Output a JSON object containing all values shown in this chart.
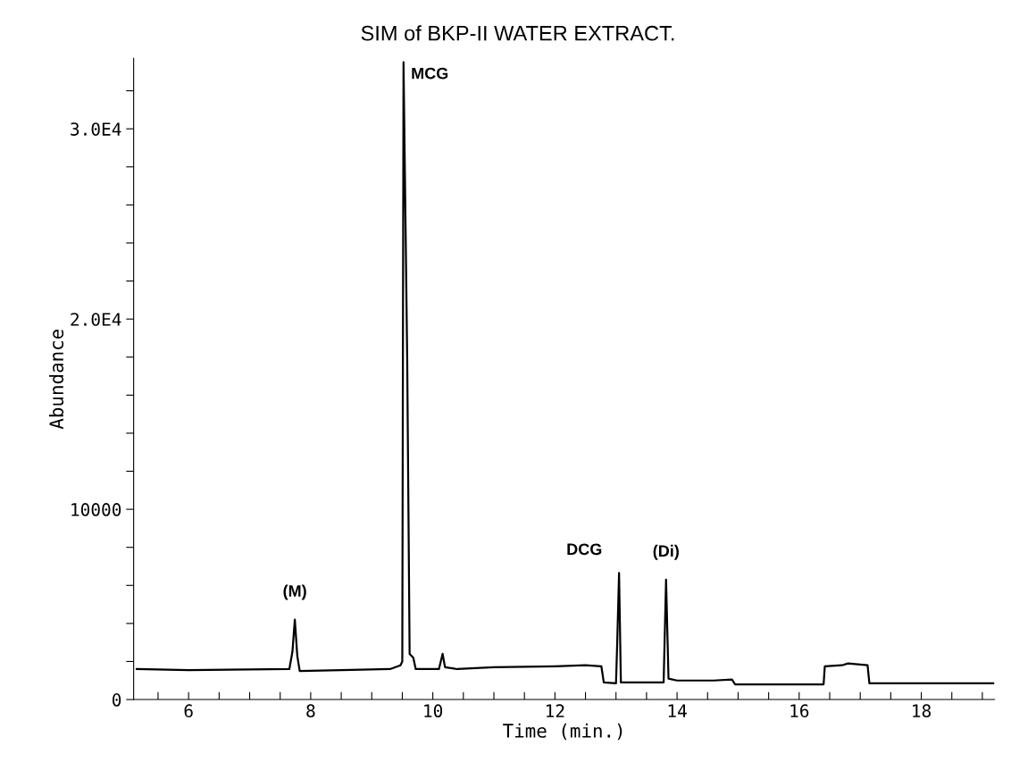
{
  "chart_data": {
    "type": "line",
    "title": "SIM of BKP-II WATER EXTRACT.",
    "xlabel": "Time (min.)",
    "ylabel": "Abundance",
    "x": [
      5.15,
      6.0,
      7.0,
      7.65,
      7.7,
      7.74,
      7.78,
      7.82,
      8.5,
      9.3,
      9.47,
      9.5,
      9.52,
      9.58,
      9.62,
      9.68,
      9.72,
      10.1,
      10.16,
      10.2,
      10.4,
      11.0,
      12.0,
      12.5,
      12.76,
      12.8,
      13.0,
      13.02,
      13.05,
      13.08,
      13.5,
      13.78,
      13.82,
      13.86,
      14.0,
      14.6,
      14.9,
      14.95,
      16.4,
      16.42,
      16.7,
      16.8,
      17.12,
      17.15,
      19.18
    ],
    "values": [
      1600,
      1550,
      1580,
      1600,
      2500,
      4200,
      2300,
      1500,
      1550,
      1600,
      1800,
      2000,
      33500,
      18000,
      2400,
      2200,
      1600,
      1600,
      2400,
      1700,
      1600,
      1700,
      1750,
      1800,
      1750,
      900,
      850,
      3000,
      6650,
      900,
      900,
      900,
      6300,
      1100,
      1000,
      1000,
      1050,
      800,
      800,
      1750,
      1800,
      1900,
      1800,
      850,
      850
    ],
    "color": "#000000",
    "xlim": [
      5.1,
      19.2
    ],
    "xticks": [
      {
        "value": 5.5,
        "label": null
      },
      6,
      {
        "value": 6.5,
        "label": null
      },
      {
        "value": 7,
        "label": null
      },
      {
        "value": 7.5,
        "label": null
      },
      8,
      {
        "value": 8.5,
        "label": null
      },
      {
        "value": 9,
        "label": null
      },
      {
        "value": 9.5,
        "label": null
      },
      10,
      {
        "value": 10.5,
        "label": null
      },
      {
        "value": 11,
        "label": null
      },
      {
        "value": 11.5,
        "label": null
      },
      12,
      {
        "value": 12.5,
        "label": null
      },
      {
        "value": 13,
        "label": null
      },
      {
        "value": 13.5,
        "label": null
      },
      14,
      {
        "value": 14.5,
        "label": null
      },
      {
        "value": 15,
        "label": null
      },
      {
        "value": 15.5,
        "label": null
      },
      16,
      {
        "value": 16.5,
        "label": null
      },
      {
        "value": 17,
        "label": null
      },
      {
        "value": 17.5,
        "label": null
      },
      18,
      {
        "value": 18.5,
        "label": null
      },
      {
        "value": 19,
        "label": null
      }
    ],
    "ylim": [
      0,
      33700
    ],
    "yticks": [
      0,
      {
        "value": 2000,
        "label": null
      },
      {
        "value": 4000,
        "label": null
      },
      {
        "value": 6000,
        "label": null
      },
      {
        "value": 8000,
        "label": null
      },
      10000,
      {
        "value": 12000,
        "label": null
      },
      {
        "value": 14000,
        "label": null
      },
      {
        "value": 16000,
        "label": null
      },
      {
        "value": 18000,
        "label": null
      },
      {
        "value": 20000,
        "label": "2.0E4"
      },
      {
        "value": 22000,
        "label": null
      },
      {
        "value": 24000,
        "label": null
      },
      {
        "value": 26000,
        "label": null
      },
      {
        "value": 28000,
        "label": null
      },
      {
        "value": 30000,
        "label": "3.0E4"
      },
      {
        "value": 32000,
        "label": null
      }
    ],
    "annotations": [
      {
        "text": "(M)",
        "x": 7.74,
        "y": 4200
      },
      {
        "text": "MCG",
        "x": 9.52,
        "y": 33500
      },
      {
        "text": "DCG",
        "x": 13.05,
        "y": 6650
      },
      {
        "text": "(Di)",
        "x": 13.82,
        "y": 6300
      }
    ],
    "grid": false,
    "legend": false,
    "marker": "none",
    "line_style": "solid"
  }
}
